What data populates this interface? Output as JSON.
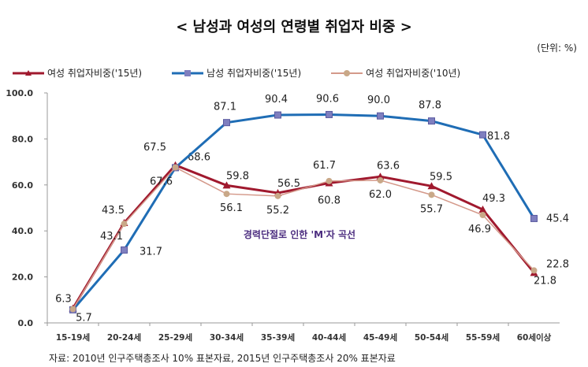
{
  "chart_data": {
    "type": "line",
    "title": "< 남성과 여성의 연령별 취업자 비중 >",
    "unit": "(단위: %)",
    "categories": [
      "15-19세",
      "20-24세",
      "25-29세",
      "30-34세",
      "35-39세",
      "40-44세",
      "45-49세",
      "50-54세",
      "55-59세",
      "60세이상"
    ],
    "ylim": [
      0,
      100
    ],
    "yticks": [
      "0.0",
      "20.0",
      "40.0",
      "60.0",
      "80.0",
      "100.0"
    ],
    "series": [
      {
        "name": "여성 취업자비중('15년)",
        "color": "#A0192E",
        "marker": "triangle",
        "values": [
          6.3,
          43.5,
          68.6,
          59.8,
          56.5,
          60.8,
          63.6,
          59.5,
          49.3,
          21.8
        ],
        "labels": [
          "6.3",
          "43.5",
          "68.6",
          "59.8",
          "56.5",
          "60.8",
          "63.6",
          "59.5",
          "49.3",
          "21.8"
        ]
      },
      {
        "name": "남성 취업자비중('15년)",
        "color": "#1F6DB5",
        "marker": "square",
        "values": [
          5.7,
          31.7,
          67.5,
          87.1,
          90.4,
          90.6,
          90.0,
          87.8,
          81.8,
          45.4
        ],
        "labels": [
          "5.7",
          "31.7",
          "67.5",
          "87.1",
          "90.4",
          "90.6",
          "90.0",
          "87.8",
          "81.8",
          "45.4"
        ]
      },
      {
        "name": "여성 취업자비중('10년)",
        "color": "#D4998A",
        "marker": "circle",
        "values": [
          6.0,
          43.1,
          67.6,
          56.1,
          55.2,
          61.7,
          62.0,
          55.7,
          46.9,
          22.8
        ],
        "labels": [
          null,
          "43.1",
          "67.6",
          "56.1",
          "55.2",
          "61.7",
          "62.0",
          "55.7",
          "46.9",
          "22.8"
        ]
      }
    ],
    "annotation": "경력단절로 인한 'M'자 곡선",
    "source": "자료: 2010년 인구주택총조사 10% 표본자료, 2015년 인구주택총조사 20% 표본자료"
  }
}
